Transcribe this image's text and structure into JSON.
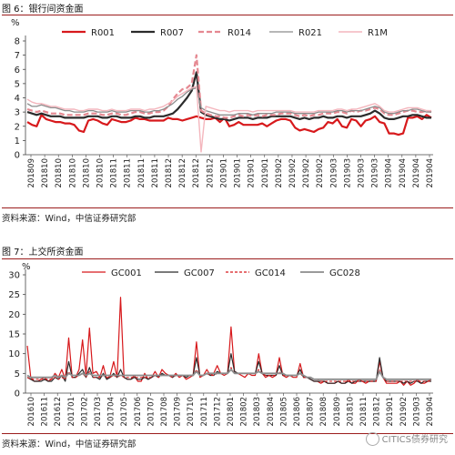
{
  "colors": {
    "red": "#d7191c",
    "black": "#2b2b2b",
    "pink": "#e58891",
    "gray": "#8c8c8c",
    "lightpink": "#f4b6bd",
    "rule": "#9b1c1c"
  },
  "watermark": "CITICS债券研究",
  "chart_data": [
    {
      "type": "line",
      "figure_title": "图 6：银行间资金面",
      "source": "资料来源：Wind，中信证券研究部",
      "ylabel": "%",
      "ylim": [
        0,
        8
      ],
      "yticks": [
        0,
        1,
        2,
        3,
        4,
        5,
        6,
        7,
        8
      ],
      "legend_position": "top",
      "x_tick_labels": [
        "201809",
        "201810",
        "201810",
        "201810",
        "201810",
        "201810",
        "201811",
        "201811",
        "201811",
        "201811",
        "201812",
        "201812",
        "201812",
        "201812",
        "201901",
        "201901",
        "201901",
        "201901",
        "201902",
        "201902",
        "201902",
        "201902",
        "201903",
        "201903",
        "201903",
        "201903",
        "201904",
        "201904",
        "201904",
        "201904"
      ],
      "series": [
        {
          "name": "R001",
          "style": "red-thick",
          "values": [
            2.3,
            2.1,
            2.0,
            2.8,
            2.5,
            2.4,
            2.3,
            2.3,
            2.2,
            2.2,
            2.1,
            1.7,
            1.6,
            2.4,
            2.5,
            2.4,
            2.2,
            2.1,
            2.5,
            2.4,
            2.3,
            2.3,
            2.4,
            2.6,
            2.5,
            2.5,
            2.4,
            2.4,
            2.4,
            2.4,
            2.6,
            2.5,
            2.5,
            2.4,
            2.5,
            2.6,
            2.7,
            2.6,
            2.5,
            2.5,
            2.6,
            2.3,
            2.6,
            2.0,
            2.1,
            2.3,
            2.1,
            2.1,
            2.1,
            2.1,
            2.2,
            2.0,
            2.2,
            2.4,
            2.5,
            2.5,
            2.4,
            1.9,
            1.7,
            1.8,
            1.7,
            1.6,
            1.8,
            1.9,
            2.3,
            2.2,
            2.5,
            2.0,
            1.9,
            2.5,
            2.4,
            2.0,
            2.4,
            2.5,
            2.7,
            2.3,
            2.2,
            1.5,
            1.5,
            1.4,
            1.5,
            2.6,
            2.6,
            2.7,
            2.5,
            2.8,
            2.6
          ]
        },
        {
          "name": "R007",
          "style": "black-thick",
          "values": [
            3.0,
            2.9,
            2.8,
            2.9,
            2.8,
            2.7,
            2.7,
            2.7,
            2.6,
            2.6,
            2.6,
            2.6,
            2.6,
            2.7,
            2.7,
            2.7,
            2.6,
            2.6,
            2.7,
            2.7,
            2.6,
            2.6,
            2.6,
            2.7,
            2.7,
            2.6,
            2.6,
            2.7,
            2.7,
            2.7,
            2.8,
            2.9,
            3.2,
            3.6,
            4.0,
            4.5,
            5.8,
            3.0,
            2.8,
            2.7,
            2.6,
            2.5,
            2.5,
            2.4,
            2.5,
            2.6,
            2.6,
            2.6,
            2.5,
            2.6,
            2.6,
            2.6,
            2.7,
            2.7,
            2.7,
            2.7,
            2.7,
            2.6,
            2.5,
            2.6,
            2.5,
            2.6,
            2.6,
            2.7,
            2.6,
            2.6,
            2.7,
            2.7,
            2.6,
            2.7,
            2.7,
            2.7,
            2.8,
            2.9,
            3.1,
            2.9,
            2.6,
            2.5,
            2.5,
            2.6,
            2.7,
            2.7,
            2.8,
            2.8,
            2.7,
            2.6,
            2.6
          ]
        },
        {
          "name": "R014",
          "style": "pink-dashed",
          "values": [
            3.2,
            3.1,
            3.0,
            3.1,
            3.0,
            2.9,
            2.9,
            2.9,
            2.8,
            2.8,
            2.8,
            2.8,
            2.8,
            2.9,
            2.9,
            2.9,
            2.8,
            2.8,
            2.9,
            2.9,
            2.8,
            2.8,
            2.9,
            3.0,
            3.0,
            2.9,
            2.9,
            3.0,
            3.0,
            3.1,
            3.4,
            3.9,
            4.3,
            4.6,
            4.7,
            5.0,
            7.0,
            3.1,
            2.9,
            2.8,
            2.7,
            2.7,
            2.6,
            2.6,
            2.7,
            2.8,
            2.7,
            2.8,
            2.7,
            2.8,
            2.7,
            2.8,
            2.8,
            2.8,
            2.9,
            2.9,
            2.9,
            2.8,
            2.7,
            2.8,
            2.7,
            2.8,
            2.8,
            2.9,
            2.9,
            2.9,
            3.0,
            3.0,
            2.9,
            3.1,
            3.0,
            3.1,
            3.1,
            3.2,
            3.3,
            3.2,
            2.9,
            2.8,
            2.8,
            2.9,
            3.0,
            3.1,
            3.1,
            3.0,
            3.0,
            3.1,
            3.0
          ]
        },
        {
          "name": "R021",
          "style": "gray-thin",
          "values": [
            3.6,
            3.4,
            3.4,
            3.5,
            3.4,
            3.3,
            3.3,
            3.2,
            3.1,
            3.1,
            3.0,
            3.0,
            3.0,
            3.1,
            3.1,
            3.0,
            3.0,
            3.0,
            3.1,
            3.0,
            3.0,
            3.0,
            3.1,
            3.1,
            3.1,
            3.0,
            3.0,
            3.1,
            3.1,
            3.2,
            3.4,
            3.6,
            3.9,
            4.1,
            4.4,
            4.6,
            4.7,
            3.3,
            3.1,
            3.0,
            2.9,
            2.8,
            2.8,
            2.8,
            2.8,
            2.9,
            2.9,
            2.9,
            2.8,
            2.9,
            2.9,
            2.9,
            2.9,
            3.0,
            3.0,
            3.0,
            3.0,
            2.9,
            2.9,
            2.9,
            2.9,
            2.9,
            3.0,
            3.0,
            3.0,
            3.0,
            3.1,
            3.1,
            3.0,
            3.1,
            3.1,
            3.1,
            3.2,
            3.3,
            3.4,
            3.3,
            3.0,
            2.9,
            2.9,
            3.0,
            3.1,
            3.1,
            3.2,
            3.2,
            3.1,
            3.0,
            3.0
          ]
        },
        {
          "name": "R1M",
          "style": "lightpink-thin",
          "values": [
            3.9,
            3.7,
            3.6,
            3.6,
            3.5,
            3.4,
            3.4,
            3.3,
            3.2,
            3.2,
            3.2,
            3.1,
            3.1,
            3.2,
            3.2,
            3.2,
            3.1,
            3.1,
            3.2,
            3.1,
            3.1,
            3.1,
            3.2,
            3.2,
            3.2,
            3.1,
            3.2,
            3.2,
            3.3,
            3.4,
            3.6,
            3.8,
            4.1,
            4.3,
            4.5,
            4.7,
            4.8,
            0.2,
            3.4,
            3.3,
            3.2,
            3.1,
            3.1,
            3.0,
            3.1,
            3.1,
            3.1,
            3.1,
            3.0,
            3.1,
            3.1,
            3.1,
            3.1,
            3.1,
            3.1,
            3.1,
            3.1,
            3.0,
            3.0,
            3.0,
            3.0,
            3.0,
            3.1,
            3.1,
            3.1,
            3.1,
            3.2,
            3.2,
            3.1,
            3.2,
            3.2,
            3.3,
            3.4,
            3.5,
            3.6,
            3.4,
            3.1,
            3.0,
            3.0,
            3.1,
            3.2,
            3.3,
            3.3,
            3.3,
            3.2,
            3.1,
            3.1
          ]
        }
      ]
    },
    {
      "type": "line",
      "figure_title": "图 7：上交所资金面",
      "source": "资料来源：Wind，中信证券研究部",
      "ylabel": "%",
      "ylim": [
        0,
        30
      ],
      "yticks": [
        0,
        5,
        10,
        15,
        20,
        25,
        30
      ],
      "legend_position": "top",
      "x_tick_labels": [
        "201610",
        "201611",
        "201612",
        "201701",
        "201702",
        "201703",
        "201704",
        "201705",
        "201706",
        "201707",
        "201708",
        "201709",
        "201710",
        "201711",
        "201712",
        "201801",
        "201802",
        "201803",
        "201804",
        "201805",
        "201806",
        "201807",
        "201808",
        "201809",
        "201810",
        "201811",
        "201812",
        "201901",
        "201902",
        "201903",
        "201904"
      ],
      "series": [
        {
          "name": "GC001",
          "style": "red-thin",
          "values": [
            12.0,
            4.0,
            3.0,
            3.0,
            3.5,
            4.0,
            3.0,
            3.5,
            5.0,
            4.0,
            6.0,
            3.5,
            14.0,
            4.0,
            4.0,
            6.0,
            13.5,
            4.5,
            16.5,
            5.0,
            5.5,
            4.0,
            7.0,
            3.5,
            4.5,
            8.0,
            4.0,
            24.3,
            4.0,
            3.5,
            3.5,
            4.5,
            3.0,
            3.0,
            5.0,
            3.5,
            4.0,
            5.5,
            4.0,
            6.0,
            5.0,
            4.5,
            4.0,
            5.0,
            4.0,
            4.5,
            3.5,
            4.0,
            4.5,
            13.0,
            4.0,
            4.5,
            6.0,
            4.5,
            5.0,
            7.0,
            5.0,
            4.5,
            5.0,
            16.8,
            5.5,
            5.0,
            4.5,
            4.0,
            5.0,
            4.5,
            4.5,
            10.0,
            5.0,
            4.0,
            4.5,
            4.0,
            4.5,
            9.0,
            4.5,
            4.0,
            4.5,
            4.0,
            4.0,
            7.5,
            4.0,
            4.0,
            3.5,
            3.0,
            3.0,
            2.5,
            3.0,
            2.5,
            2.5,
            2.5,
            3.0,
            2.5,
            2.5,
            3.5,
            2.5,
            2.5,
            3.5,
            3.0,
            2.5,
            3.0,
            3.0,
            3.0,
            8.0,
            4.0,
            2.5,
            2.5,
            2.5,
            2.5,
            3.0,
            2.0,
            3.0,
            2.0,
            2.5,
            3.5,
            2.5,
            2.5,
            3.0,
            3.5
          ]
        },
        {
          "name": "GC007",
          "style": "black-thin",
          "values": [
            4.0,
            3.5,
            3.0,
            3.0,
            3.0,
            3.5,
            3.0,
            3.0,
            4.0,
            3.5,
            4.5,
            3.0,
            8.0,
            4.0,
            4.0,
            5.0,
            6.0,
            4.0,
            6.5,
            4.0,
            4.0,
            3.5,
            5.0,
            3.5,
            4.0,
            5.0,
            4.0,
            6.0,
            4.0,
            3.5,
            3.5,
            4.0,
            3.5,
            3.5,
            4.0,
            3.5,
            4.0,
            4.5,
            4.0,
            5.0,
            4.5,
            4.5,
            4.0,
            4.5,
            4.5,
            4.5,
            4.0,
            4.5,
            4.5,
            9.0,
            4.5,
            4.5,
            5.0,
            4.5,
            4.5,
            5.5,
            5.0,
            5.0,
            5.0,
            10.0,
            5.5,
            5.0,
            5.0,
            5.0,
            5.0,
            5.0,
            5.0,
            8.0,
            5.0,
            4.5,
            4.5,
            4.5,
            4.5,
            7.0,
            4.5,
            4.5,
            4.5,
            4.5,
            4.5,
            6.0,
            4.0,
            4.0,
            3.5,
            3.0,
            3.0,
            3.0,
            3.0,
            2.5,
            2.5,
            2.5,
            3.0,
            2.5,
            2.5,
            3.0,
            2.5,
            3.0,
            3.0,
            3.0,
            3.0,
            3.0,
            3.0,
            3.0,
            9.0,
            4.0,
            3.0,
            3.0,
            3.0,
            3.0,
            3.0,
            2.5,
            3.0,
            2.5,
            3.0,
            3.0,
            2.5,
            3.0,
            3.0,
            3.0
          ]
        },
        {
          "name": "GC014",
          "style": "red-dashed-thin",
          "values": [
            4.0,
            3.5,
            3.5,
            3.5,
            3.5,
            3.5,
            3.5,
            3.5,
            4.0,
            3.5,
            4.0,
            3.5,
            5.5,
            4.0,
            4.0,
            4.5,
            5.0,
            4.0,
            5.5,
            4.0,
            4.0,
            4.0,
            4.5,
            4.0,
            4.0,
            4.5,
            4.0,
            4.5,
            4.0,
            4.0,
            4.0,
            4.0,
            4.0,
            4.0,
            4.0,
            4.0,
            4.0,
            4.5,
            4.0,
            4.5,
            4.5,
            4.5,
            4.0,
            4.5,
            4.5,
            4.5,
            4.5,
            4.5,
            4.5,
            6.0,
            4.5,
            4.5,
            5.0,
            4.5,
            4.5,
            5.0,
            5.0,
            5.0,
            5.0,
            6.5,
            5.0,
            5.0,
            5.0,
            5.0,
            5.0,
            5.0,
            5.0,
            6.0,
            5.0,
            4.5,
            4.5,
            4.5,
            4.5,
            5.5,
            4.5,
            4.5,
            4.5,
            4.5,
            4.5,
            5.0,
            4.0,
            4.0,
            4.0,
            3.5,
            3.5,
            3.0,
            3.0,
            3.0,
            3.0,
            3.0,
            3.0,
            3.0,
            3.0,
            3.0,
            3.0,
            3.0,
            3.0,
            3.0,
            3.0,
            3.0,
            3.0,
            3.0,
            6.0,
            4.0,
            3.0,
            3.0,
            3.0,
            3.0,
            3.0,
            3.0,
            3.0,
            3.0,
            3.0,
            3.0,
            3.0,
            3.0,
            3.0,
            3.0
          ]
        },
        {
          "name": "GC028",
          "style": "gray-thick",
          "values": [
            4.5,
            4.0,
            4.0,
            4.0,
            4.0,
            4.0,
            4.0,
            4.0,
            4.5,
            4.0,
            4.5,
            4.0,
            5.0,
            4.5,
            4.5,
            4.5,
            5.0,
            4.5,
            5.0,
            4.5,
            4.5,
            4.5,
            4.5,
            4.5,
            4.5,
            4.5,
            4.5,
            4.5,
            4.5,
            4.5,
            4.5,
            4.5,
            4.5,
            4.5,
            4.5,
            4.5,
            4.5,
            4.5,
            4.5,
            4.5,
            4.5,
            4.5,
            4.5,
            4.5,
            4.5,
            4.5,
            4.5,
            4.5,
            4.5,
            5.5,
            4.5,
            4.5,
            5.0,
            5.0,
            5.0,
            5.0,
            5.0,
            5.0,
            5.0,
            6.0,
            5.0,
            5.0,
            5.0,
            5.0,
            5.0,
            5.0,
            5.0,
            5.5,
            5.0,
            5.0,
            5.0,
            5.0,
            5.0,
            5.0,
            5.0,
            4.5,
            4.5,
            4.5,
            4.5,
            5.0,
            4.5,
            4.0,
            4.0,
            3.5,
            3.5,
            3.5,
            3.5,
            3.5,
            3.5,
            3.5,
            3.5,
            3.5,
            3.5,
            3.5,
            3.5,
            3.5,
            3.5,
            3.5,
            3.5,
            3.5,
            3.5,
            3.5,
            5.5,
            4.0,
            3.5,
            3.5,
            3.5,
            3.5,
            3.5,
            3.5,
            3.5,
            3.5,
            3.5,
            3.5,
            3.5,
            3.5,
            3.5,
            3.5
          ]
        }
      ]
    }
  ]
}
